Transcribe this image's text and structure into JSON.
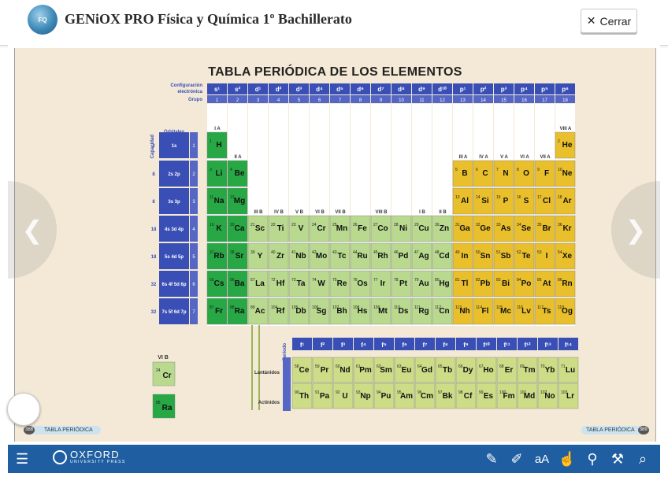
{
  "header": {
    "title": "GENiOX PRO Física y Química 1º Bachillerato",
    "close_label": "Cerrar"
  },
  "page": {
    "title": "TABLA PERIÓDICA DE LOS ELEMENTOS",
    "label_config": "Configuración electrónica",
    "label_grupo": "Grupo",
    "label_capacidad": "Capacidad",
    "label_orbitales": "Orbitales",
    "label_periodo": "Período",
    "label_periodo2": "Período",
    "orbitals": [
      "s¹",
      "s²",
      "d¹",
      "d²",
      "d³",
      "d⁴",
      "d⁵",
      "d⁶",
      "d⁷",
      "d⁸",
      "d⁹",
      "d¹⁰",
      "p¹",
      "p²",
      "p³",
      "p⁴",
      "p⁵",
      "p⁶"
    ],
    "groups": [
      "1",
      "2",
      "3",
      "4",
      "5",
      "6",
      "7",
      "8",
      "9",
      "10",
      "11",
      "12",
      "13",
      "14",
      "15",
      "16",
      "17",
      "18"
    ],
    "row_labels": [
      {
        "cap": "2",
        "orb": "1s",
        "per": "1"
      },
      {
        "cap": "8",
        "orb": "2s 2p",
        "per": "2"
      },
      {
        "cap": "8",
        "orb": "3s 3p",
        "per": "3"
      },
      {
        "cap": "18",
        "orb": "4s 3d 4p",
        "per": "4"
      },
      {
        "cap": "18",
        "orb": "5s 4d 5p",
        "per": "5"
      },
      {
        "cap": "32",
        "orb": "6s 4f 5d 6p",
        "per": "6"
      },
      {
        "cap": "32",
        "orb": "7s 5f 6d 7p",
        "per": "7"
      }
    ],
    "group_names": [
      "I A",
      "II A",
      "III B",
      "IV B",
      "V B",
      "VI B",
      "VII B",
      "VIII B",
      "I B",
      "II B",
      "III A",
      "IV A",
      "V A",
      "VI A",
      "VII A",
      "VIII A"
    ],
    "elements": [
      [
        "H",
        1,
        1,
        1,
        "g"
      ],
      [
        "He",
        1,
        18,
        2,
        "y"
      ],
      [
        "Li",
        2,
        1,
        3,
        "g"
      ],
      [
        "Be",
        2,
        2,
        4,
        "g"
      ],
      [
        "B",
        2,
        13,
        5,
        "y"
      ],
      [
        "C",
        2,
        14,
        6,
        "y"
      ],
      [
        "N",
        2,
        15,
        7,
        "y"
      ],
      [
        "O",
        2,
        16,
        8,
        "y"
      ],
      [
        "F",
        2,
        17,
        9,
        "y"
      ],
      [
        "Ne",
        2,
        18,
        10,
        "y"
      ],
      [
        "Na",
        3,
        1,
        11,
        "g"
      ],
      [
        "Mg",
        3,
        2,
        12,
        "g"
      ],
      [
        "Al",
        3,
        13,
        13,
        "y"
      ],
      [
        "Si",
        3,
        14,
        14,
        "y"
      ],
      [
        "P",
        3,
        15,
        15,
        "y"
      ],
      [
        "S",
        3,
        16,
        16,
        "y"
      ],
      [
        "Cl",
        3,
        17,
        17,
        "y"
      ],
      [
        "Ar",
        3,
        18,
        18,
        "y"
      ],
      [
        "K",
        4,
        1,
        19,
        "g"
      ],
      [
        "Ca",
        4,
        2,
        20,
        "g"
      ],
      [
        "Sc",
        4,
        3,
        21,
        "l"
      ],
      [
        "Ti",
        4,
        4,
        22,
        "l"
      ],
      [
        "V",
        4,
        5,
        23,
        "l"
      ],
      [
        "Cr",
        4,
        6,
        24,
        "l"
      ],
      [
        "Mn",
        4,
        7,
        25,
        "l"
      ],
      [
        "Fe",
        4,
        8,
        26,
        "l"
      ],
      [
        "Co",
        4,
        9,
        27,
        "l"
      ],
      [
        "Ni",
        4,
        10,
        28,
        "l"
      ],
      [
        "Cu",
        4,
        11,
        29,
        "l"
      ],
      [
        "Zn",
        4,
        12,
        30,
        "l"
      ],
      [
        "Ga",
        4,
        13,
        31,
        "y"
      ],
      [
        "Ge",
        4,
        14,
        32,
        "y"
      ],
      [
        "As",
        4,
        15,
        33,
        "y"
      ],
      [
        "Se",
        4,
        16,
        34,
        "y"
      ],
      [
        "Br",
        4,
        17,
        35,
        "y"
      ],
      [
        "Kr",
        4,
        18,
        36,
        "y"
      ],
      [
        "Rb",
        5,
        1,
        37,
        "g"
      ],
      [
        "Sr",
        5,
        2,
        38,
        "g"
      ],
      [
        "Y",
        5,
        3,
        39,
        "l"
      ],
      [
        "Zr",
        5,
        4,
        40,
        "l"
      ],
      [
        "Nb",
        5,
        5,
        41,
        "l"
      ],
      [
        "Mo",
        5,
        6,
        42,
        "l"
      ],
      [
        "Tc",
        5,
        7,
        43,
        "l"
      ],
      [
        "Ru",
        5,
        8,
        44,
        "l"
      ],
      [
        "Rh",
        5,
        9,
        45,
        "l"
      ],
      [
        "Pd",
        5,
        10,
        46,
        "l"
      ],
      [
        "Ag",
        5,
        11,
        47,
        "l"
      ],
      [
        "Cd",
        5,
        12,
        48,
        "l"
      ],
      [
        "In",
        5,
        13,
        49,
        "y"
      ],
      [
        "Sn",
        5,
        14,
        50,
        "y"
      ],
      [
        "Sb",
        5,
        15,
        51,
        "y"
      ],
      [
        "Te",
        5,
        16,
        52,
        "y"
      ],
      [
        "I",
        5,
        17,
        53,
        "y"
      ],
      [
        "Xe",
        5,
        18,
        54,
        "y"
      ],
      [
        "Cs",
        6,
        1,
        55,
        "g"
      ],
      [
        "Ba",
        6,
        2,
        56,
        "g"
      ],
      [
        "La",
        6,
        3,
        57,
        "l"
      ],
      [
        "Hf",
        6,
        4,
        72,
        "l"
      ],
      [
        "Ta",
        6,
        5,
        73,
        "l"
      ],
      [
        "W",
        6,
        6,
        74,
        "l"
      ],
      [
        "Re",
        6,
        7,
        75,
        "l"
      ],
      [
        "Os",
        6,
        8,
        76,
        "l"
      ],
      [
        "Ir",
        6,
        9,
        77,
        "l"
      ],
      [
        "Pt",
        6,
        10,
        78,
        "l"
      ],
      [
        "Au",
        6,
        11,
        79,
        "l"
      ],
      [
        "Hg",
        6,
        12,
        80,
        "l"
      ],
      [
        "Tl",
        6,
        13,
        81,
        "y"
      ],
      [
        "Pb",
        6,
        14,
        82,
        "y"
      ],
      [
        "Bi",
        6,
        15,
        83,
        "y"
      ],
      [
        "Po",
        6,
        16,
        84,
        "y"
      ],
      [
        "At",
        6,
        17,
        85,
        "y"
      ],
      [
        "Rn",
        6,
        18,
        86,
        "y"
      ],
      [
        "Fr",
        7,
        1,
        87,
        "g"
      ],
      [
        "Ra",
        7,
        2,
        88,
        "g"
      ],
      [
        "Ac",
        7,
        3,
        89,
        "l"
      ],
      [
        "Rf",
        7,
        4,
        104,
        "l"
      ],
      [
        "Db",
        7,
        5,
        105,
        "l"
      ],
      [
        "Sg",
        7,
        6,
        106,
        "l"
      ],
      [
        "Bh",
        7,
        7,
        107,
        "l"
      ],
      [
        "Hs",
        7,
        8,
        108,
        "l"
      ],
      [
        "Mt",
        7,
        9,
        109,
        "l"
      ],
      [
        "Ds",
        7,
        10,
        110,
        "l"
      ],
      [
        "Rg",
        7,
        11,
        111,
        "l"
      ],
      [
        "Cn",
        7,
        12,
        112,
        "l"
      ],
      [
        "Nh",
        7,
        13,
        113,
        "y"
      ],
      [
        "Fl",
        7,
        14,
        114,
        "y"
      ],
      [
        "Mc",
        7,
        15,
        115,
        "y"
      ],
      [
        "Lv",
        7,
        16,
        116,
        "y"
      ],
      [
        "Ts",
        7,
        17,
        117,
        "y"
      ],
      [
        "Og",
        7,
        18,
        118,
        "y"
      ]
    ],
    "f_orbitals": [
      "f¹",
      "f²",
      "f³",
      "f⁴",
      "f⁵",
      "f⁶",
      "f⁷",
      "f⁸",
      "f⁹",
      "f¹⁰",
      "f¹¹",
      "f¹²",
      "f¹³",
      "f¹⁴"
    ],
    "lanthanides": [
      [
        "Ce",
        58
      ],
      [
        "Pr",
        59
      ],
      [
        "Nd",
        60
      ],
      [
        "Pm",
        61
      ],
      [
        "Sm",
        62
      ],
      [
        "Eu",
        63
      ],
      [
        "Gd",
        64
      ],
      [
        "Tb",
        65
      ],
      [
        "Dy",
        66
      ],
      [
        "Ho",
        67
      ],
      [
        "Er",
        68
      ],
      [
        "Tm",
        69
      ],
      [
        "Yb",
        70
      ],
      [
        "Lu",
        71
      ]
    ],
    "actinides": [
      [
        "Th",
        90
      ],
      [
        "Pa",
        91
      ],
      [
        "U",
        92
      ],
      [
        "Np",
        93
      ],
      [
        "Pu",
        94
      ],
      [
        "Am",
        95
      ],
      [
        "Cm",
        96
      ],
      [
        "Bk",
        97
      ],
      [
        "Cf",
        98
      ],
      [
        "Es",
        99
      ],
      [
        "Fm",
        100
      ],
      [
        "Md",
        101
      ],
      [
        "No",
        102
      ],
      [
        "Lr",
        103
      ]
    ],
    "label_lantanidos": "Lantánidos",
    "label_actinidos": "Actínidos",
    "legend_group": "VI B",
    "legend_cr": [
      "Cr",
      24
    ],
    "legend_ra": [
      "Ra",
      88
    ],
    "footer_left_num": "388",
    "footer_left_label": "TABLA PERIÓDICA",
    "footer_right_num": "389",
    "footer_right_label": "TABLA PERIÓDICA"
  },
  "colors": {
    "group_header": "#3a4fb5",
    "period_band": "#3a4fb5",
    "alkali": "#27a845",
    "transition": "#b9d98f",
    "nonmetal": "#e9bf2c",
    "f_block": "#cddc86",
    "page_bg": "#f3e9d6",
    "bottom_bar": "#1f5ea0"
  },
  "bottom": {
    "brand": "OXFORD",
    "brand_sub": "UNIVERSITY PRESS"
  },
  "icons": {
    "menu": "list-icon",
    "tools": [
      "pencil-icon",
      "highlighter-icon",
      "text-size-icon",
      "hand-select-icon",
      "joystick-icon",
      "wrench-icon",
      "search-icon"
    ]
  }
}
